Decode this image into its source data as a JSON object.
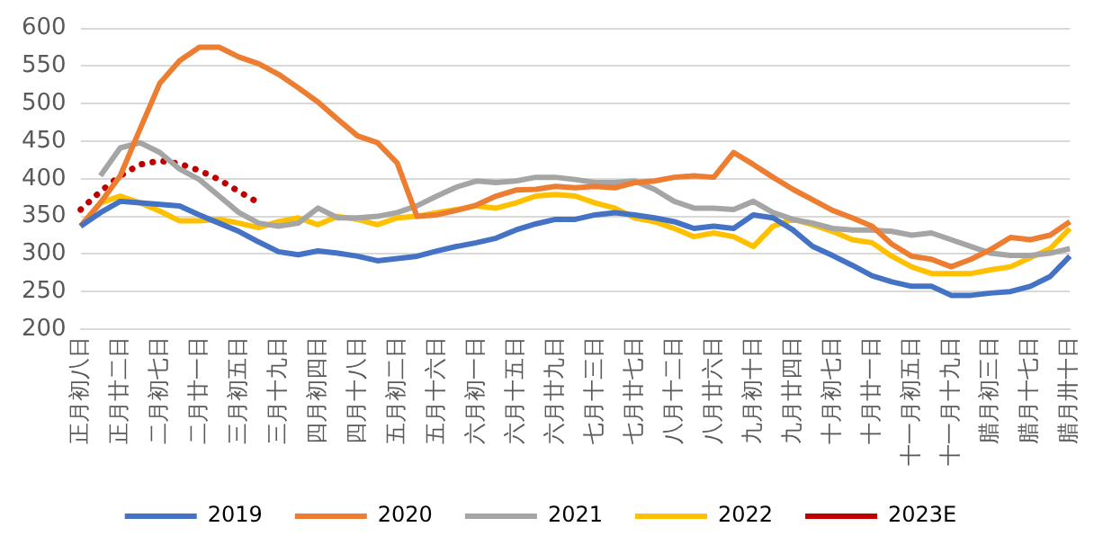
{
  "chart_data": {
    "type": "line",
    "categories": [
      "正月初八日",
      null,
      "正月廿二日",
      null,
      "二月初七日",
      null,
      "二月廿一日",
      null,
      "三月初五日",
      null,
      "三月十九日",
      null,
      "四月初四日",
      null,
      "四月十八日",
      null,
      "五月初二日",
      null,
      "五月十六日",
      null,
      "六月初一日",
      null,
      "六月十五日",
      null,
      "六月廿九日",
      null,
      "七月十三日",
      null,
      "七月廿七日",
      null,
      "八月十二日",
      null,
      "八月廿六日",
      null,
      "九月初十日",
      null,
      "九月廿四日",
      null,
      "十月初七日",
      null,
      "十月廿一日",
      null,
      "十一月初五日",
      null,
      "十一月十九日",
      null,
      "腊月初三日",
      null,
      "腊月十七日",
      null,
      "腊月卅十日"
    ],
    "series": [
      {
        "name": "2019",
        "color": "#4472c4",
        "values": [
          337,
          355,
          370,
          368,
          366,
          364,
          352,
          341,
          330,
          316,
          303,
          299,
          304,
          301,
          297,
          291,
          294,
          297,
          304,
          310,
          315,
          321,
          332,
          340,
          346,
          346,
          352,
          355,
          352,
          348,
          343,
          334,
          337,
          334,
          352,
          348,
          332,
          310,
          298,
          285,
          271,
          263,
          257,
          257,
          245,
          245,
          248,
          250,
          257,
          270,
          297
        ]
      },
      {
        "name": "2020",
        "color": "#ed7d31",
        "values": [
          337,
          368,
          404,
          466,
          527,
          557,
          575,
          575,
          562,
          553,
          539,
          521,
          502,
          479,
          457,
          448,
          421,
          350,
          352,
          358,
          365,
          377,
          385,
          386,
          390,
          388,
          390,
          388,
          395,
          397,
          402,
          404,
          402,
          435,
          419,
          402,
          386,
          372,
          358,
          348,
          337,
          313,
          297,
          293,
          283,
          293,
          306,
          322,
          319,
          325,
          343
        ]
      },
      {
        "name": "2021",
        "color": "#a5a5a5",
        "values": [
          null,
          404,
          441,
          448,
          435,
          413,
          399,
          377,
          355,
          341,
          337,
          341,
          361,
          348,
          348,
          350,
          355,
          364,
          377,
          389,
          397,
          395,
          397,
          402,
          402,
          399,
          395,
          395,
          397,
          386,
          370,
          361,
          361,
          359,
          370,
          355,
          346,
          341,
          334,
          332,
          332,
          330,
          325,
          328,
          319,
          310,
          301,
          298,
          298,
          301,
          307
        ]
      },
      {
        "name": "2022",
        "color": "#ffc000",
        "values": [
          337,
          368,
          377,
          368,
          357,
          344,
          344,
          346,
          341,
          335,
          343,
          348,
          339,
          350,
          346,
          339,
          348,
          350,
          355,
          359,
          364,
          361,
          368,
          377,
          379,
          377,
          368,
          361,
          348,
          343,
          334,
          323,
          328,
          323,
          310,
          337,
          346,
          339,
          330,
          319,
          315,
          297,
          283,
          274,
          274,
          274,
          279,
          283,
          295,
          307,
          334
        ]
      },
      {
        "name": "2023E",
        "color": "#c00000",
        "line_style": "dotted",
        "values": [
          359,
          383,
          404,
          419,
          424,
          420,
          411,
          399,
          383,
          368,
          null,
          null,
          null,
          null,
          null,
          null,
          null,
          null,
          null,
          null,
          null,
          null,
          null,
          null,
          null,
          null,
          null,
          null,
          null,
          null,
          null,
          null,
          null,
          null,
          null,
          null,
          null,
          null,
          null,
          null,
          null,
          null,
          null,
          null,
          null,
          null,
          null,
          null,
          null,
          null,
          null
        ]
      }
    ],
    "ylim": [
      200,
      600
    ],
    "yticks": [
      200,
      250,
      300,
      350,
      400,
      450,
      500,
      550,
      600
    ],
    "grid": "y",
    "legend": "bottom",
    "line_style": "solid",
    "marker": "none"
  }
}
